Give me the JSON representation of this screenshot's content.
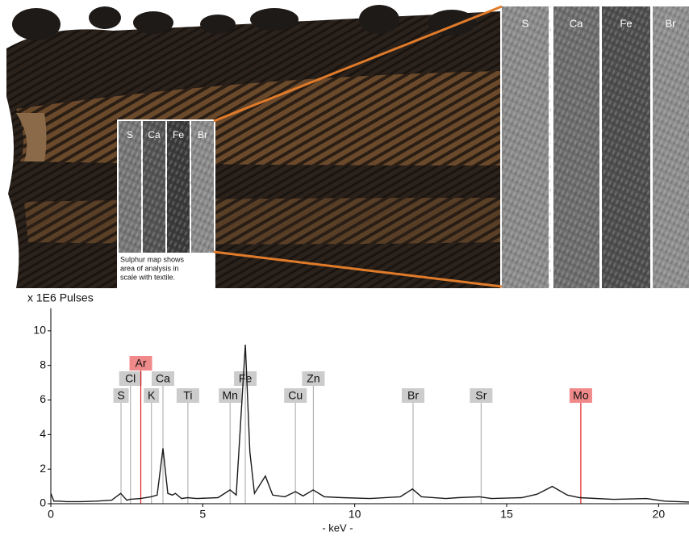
{
  "image_panel": {
    "map_labels": [
      "S",
      "Ca",
      "Fe",
      "Br"
    ],
    "caption_lines": [
      "Sulphur map shows",
      "area of analysis in",
      "scale with textile."
    ]
  },
  "chart_data": {
    "type": "line",
    "y_axis_label": "x 1E6 Pulses",
    "x_axis_label": "- keV -",
    "color": "#1a1a1a",
    "x": [
      0,
      0.1,
      0.3,
      0.5,
      1.0,
      1.5,
      2.0,
      2.3,
      2.5,
      2.6,
      2.95,
      3.3,
      3.5,
      3.69,
      3.85,
      4.0,
      4.1,
      4.3,
      4.5,
      4.8,
      5.5,
      5.9,
      6.1,
      6.4,
      6.55,
      6.7,
      7.06,
      7.3,
      7.7,
      8.05,
      8.3,
      8.63,
      9.0,
      9.6,
      10.5,
      11.5,
      11.9,
      12.2,
      13.0,
      13.4,
      14.1,
      14.5,
      15.5,
      16.0,
      16.5,
      17.0,
      17.4,
      18.5,
      19.6,
      20.2,
      21
    ],
    "values": [
      0.6,
      0.15,
      0.15,
      0.12,
      0.12,
      0.15,
      0.2,
      0.6,
      0.2,
      0.25,
      0.3,
      0.4,
      0.5,
      3.2,
      0.6,
      0.5,
      0.6,
      0.3,
      0.35,
      0.3,
      0.35,
      0.8,
      0.5,
      9.2,
      3.0,
      0.6,
      1.6,
      0.5,
      0.4,
      0.7,
      0.45,
      0.8,
      0.4,
      0.35,
      0.3,
      0.4,
      0.85,
      0.4,
      0.3,
      0.35,
      0.4,
      0.3,
      0.35,
      0.55,
      1.0,
      0.5,
      0.35,
      0.25,
      0.3,
      0.15,
      0.1
    ],
    "xlim": [
      0,
      21
    ],
    "ylim": [
      0,
      11.3
    ],
    "xticks": [
      0,
      5,
      10,
      15,
      20
    ],
    "yticks": [
      0,
      2,
      4,
      6,
      8,
      10
    ],
    "element_lines": [
      {
        "label": "S",
        "x": 2.31,
        "color": "#b4b4b4",
        "box_color": "#cccccc"
      },
      {
        "label": "Cl",
        "x": 2.62,
        "color": "#b4b4b4",
        "box_color": "#cccccc"
      },
      {
        "label": "Ar",
        "x": 2.96,
        "color": "#e02020",
        "box_color": "#f08a8a"
      },
      {
        "label": "K",
        "x": 3.31,
        "color": "#b4b4b4",
        "box_color": "#cccccc"
      },
      {
        "label": "Ca",
        "x": 3.69,
        "color": "#b4b4b4",
        "box_color": "#cccccc"
      },
      {
        "label": "Ti",
        "x": 4.51,
        "color": "#b4b4b4",
        "box_color": "#cccccc"
      },
      {
        "label": "Mn",
        "x": 5.9,
        "color": "#b4b4b4",
        "box_color": "#cccccc"
      },
      {
        "label": "Fe",
        "x": 6.4,
        "color": "#b4b4b4",
        "box_color": "#cccccc"
      },
      {
        "label": "Cu",
        "x": 8.05,
        "color": "#b4b4b4",
        "box_color": "#cccccc"
      },
      {
        "label": "Zn",
        "x": 8.64,
        "color": "#b4b4b4",
        "box_color": "#cccccc"
      },
      {
        "label": "Br",
        "x": 11.92,
        "color": "#b4b4b4",
        "box_color": "#cccccc"
      },
      {
        "label": "Sr",
        "x": 14.16,
        "color": "#b4b4b4",
        "box_color": "#cccccc"
      },
      {
        "label": "Mo",
        "x": 17.44,
        "color": "#e02020",
        "box_color": "#f08a8a"
      }
    ]
  }
}
